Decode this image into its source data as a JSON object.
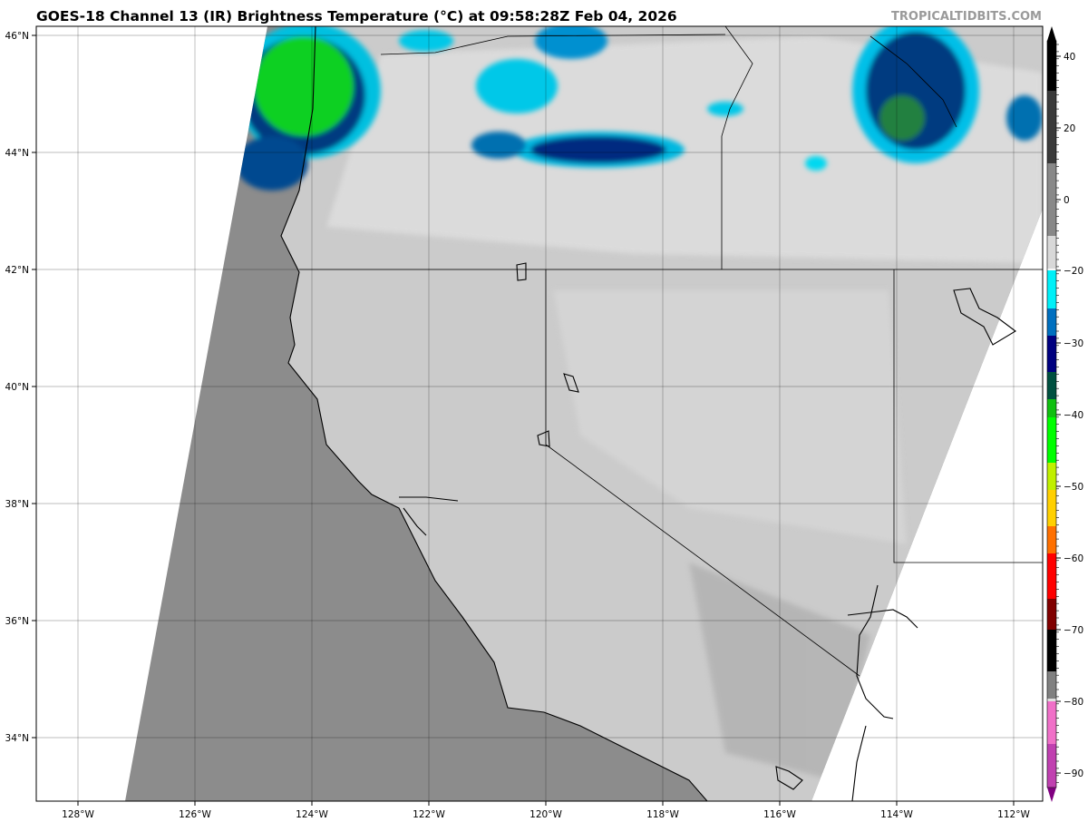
{
  "header": {
    "title": "GOES-18 Channel 13 (IR) Brightness Temperature (°C) at 09:58:28Z Feb 04, 2026",
    "watermark": "TROPICALTIDBITS.COM"
  },
  "map": {
    "lon_labels": [
      "128°W",
      "126°W",
      "124°W",
      "122°W",
      "120°W",
      "118°W",
      "116°W",
      "114°W",
      "112°W"
    ],
    "lon_values": [
      -128,
      -126,
      -124,
      -122,
      -120,
      -118,
      -116,
      -114,
      -112
    ],
    "lat_labels": [
      "46°N",
      "44°N",
      "42°N",
      "40°N",
      "38°N",
      "36°N",
      "34°N"
    ],
    "lat_values": [
      46,
      44,
      42,
      40,
      38,
      36,
      34
    ],
    "ocean_color": "#8c8c8c",
    "land_color": "#cbcbcb"
  },
  "colorbar": {
    "ticks": [
      "40",
      "20",
      "0",
      "−20",
      "−30",
      "−40",
      "−50",
      "−60",
      "−70",
      "−80",
      "−90"
    ],
    "colors": [
      "#000000",
      "#3a3a3a",
      "#777777",
      "#b0b0b0",
      "#f0f0f0",
      "#00e8f0",
      "#0060b0",
      "#000070",
      "#00a030",
      "#00ff00",
      "#b0f000",
      "#ffd000",
      "#ff7000",
      "#ff0000",
      "#800000",
      "#000000",
      "#808080",
      "#e0e0e0",
      "#f060c0",
      "#c040b0",
      "#800080"
    ]
  }
}
